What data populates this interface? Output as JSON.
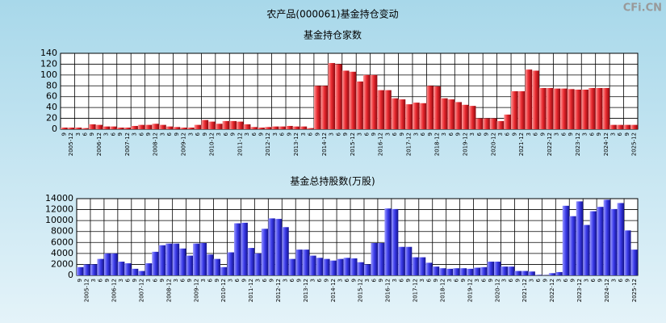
{
  "title": "农产品(000061)基金持仓变动",
  "watermark": "CFi.CN",
  "chart_data": [
    {
      "type": "bar",
      "title": "基金持仓家数",
      "color": "#e8282e",
      "categories": [
        "9",
        "2005-12",
        "3",
        "6",
        "9",
        "2006-12",
        "3",
        "6",
        "9",
        "2007-12",
        "3",
        "6",
        "9",
        "2008-12",
        "3",
        "6",
        "9",
        "2009-12",
        "3",
        "6",
        "9",
        "2010-12",
        "3",
        "6",
        "9",
        "2011-12",
        "3",
        "6",
        "9",
        "2012-12",
        "3",
        "6",
        "9",
        "2013-12",
        "3",
        "6",
        "9",
        "2014-12",
        "3",
        "6",
        "9",
        "2015-12",
        "3",
        "6",
        "9",
        "2016-12",
        "3",
        "6",
        "9",
        "2017-12",
        "3",
        "6",
        "9",
        "2018-12",
        "3",
        "6",
        "9",
        "2019-12",
        "3",
        "6",
        "9",
        "2020-12",
        "3",
        "6",
        "9",
        "2021-12",
        "3",
        "6",
        "9",
        "2022-12",
        "3",
        "6",
        "9",
        "2023-12",
        "3",
        "6",
        "9",
        "2024-12",
        "3",
        "6",
        "9",
        "2025-12"
      ],
      "values": [
        3,
        3,
        3,
        2,
        9,
        8,
        5,
        5,
        3,
        3,
        6,
        8,
        8,
        10,
        8,
        5,
        4,
        3,
        3,
        8,
        17,
        14,
        10,
        15,
        15,
        14,
        9,
        4,
        3,
        4,
        5,
        5,
        6,
        5,
        5,
        2,
        80,
        80,
        122,
        120,
        108,
        106,
        88,
        100,
        100,
        72,
        72,
        57,
        55,
        46,
        49,
        48,
        80,
        79,
        57,
        55,
        50,
        45,
        43,
        20,
        20,
        20,
        15,
        27,
        70,
        70,
        110,
        108,
        76,
        76,
        75,
        75,
        74,
        73,
        73,
        76,
        76,
        76,
        8,
        8,
        8,
        8
      ],
      "ylim": [
        0,
        140
      ],
      "yticks": [
        0,
        20,
        40,
        60,
        80,
        100,
        120,
        140
      ],
      "grid": true
    },
    {
      "type": "bar",
      "title": "基金总持股数(万股)",
      "color": "#3a3ae8",
      "categories": [
        "9",
        "2005-12",
        "3",
        "6",
        "9",
        "2006-12",
        "3",
        "6",
        "9",
        "2007-12",
        "3",
        "6",
        "9",
        "2008-12",
        "3",
        "6",
        "9",
        "2009-12",
        "3",
        "6",
        "9",
        "2010-12",
        "3",
        "6",
        "9",
        "2011-12",
        "3",
        "6",
        "9",
        "2012-12",
        "3",
        "6",
        "9",
        "2013-12",
        "3",
        "6",
        "9",
        "2014-12",
        "3",
        "6",
        "9",
        "2015-12",
        "3",
        "6",
        "9",
        "2016-12",
        "3",
        "6",
        "9",
        "2017-12",
        "3",
        "6",
        "9",
        "2018-12",
        "3",
        "6",
        "9",
        "2019-12",
        "3",
        "6",
        "9",
        "2020-12",
        "3",
        "6",
        "9",
        "2021-12",
        "3",
        "6",
        "9",
        "2022-12",
        "3",
        "6",
        "9",
        "2023-12",
        "3",
        "6",
        "9",
        "2024-12",
        "3",
        "6",
        "9",
        "2025-12"
      ],
      "values": [
        1500,
        2000,
        2000,
        3000,
        4000,
        4000,
        2500,
        2200,
        1200,
        800,
        2200,
        4300,
        5500,
        5800,
        5800,
        4900,
        3600,
        5800,
        5900,
        3800,
        3000,
        1500,
        4200,
        9500,
        9600,
        5000,
        4000,
        8500,
        10400,
        10300,
        8800,
        3000,
        4700,
        4700,
        3600,
        3200,
        3000,
        2700,
        3000,
        3200,
        3100,
        2400,
        2000,
        5900,
        5900,
        12200,
        12100,
        5200,
        5200,
        3300,
        3300,
        2300,
        1600,
        1300,
        1200,
        1300,
        1300,
        1200,
        1400,
        1500,
        2500,
        2500,
        1600,
        1600,
        800,
        800,
        700,
        100,
        50,
        400,
        600,
        12700,
        10800,
        13500,
        9200,
        11700,
        12500,
        13800,
        12100,
        13200,
        8200,
        4700
      ],
      "ylim": [
        0,
        14000
      ],
      "yticks": [
        0,
        2000,
        4000,
        6000,
        8000,
        10000,
        12000,
        14000
      ],
      "grid": true
    }
  ]
}
